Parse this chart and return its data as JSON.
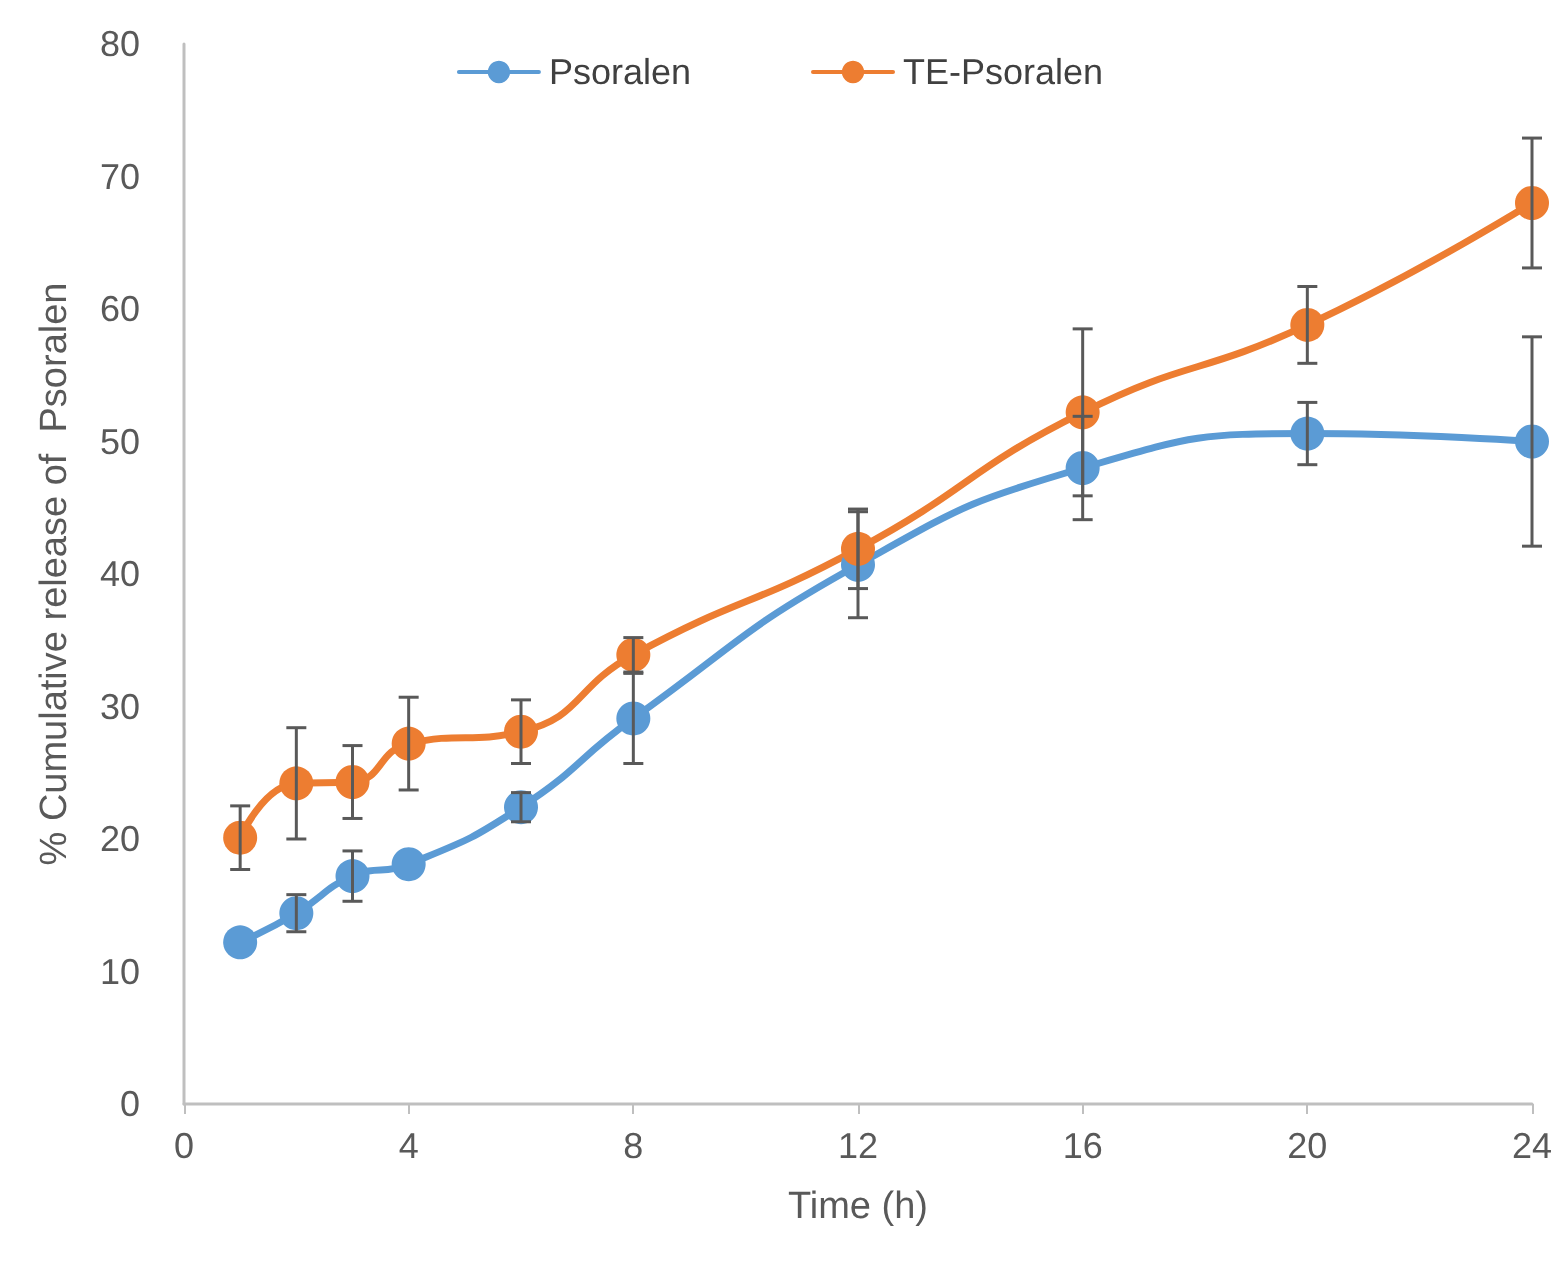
{
  "chart_data": {
    "type": "line",
    "xlabel": "Time (h)",
    "ylabel": "% Cumulative release of  Psoralen",
    "x": [
      1,
      2,
      3,
      4,
      6,
      8,
      12,
      16,
      20,
      24
    ],
    "series": [
      {
        "name": "Psoralen",
        "color": "#5b9bd5",
        "values": [
          12.2,
          14.4,
          17.2,
          18.1,
          22.4,
          29.1,
          40.7,
          48.0,
          50.6,
          50.0
        ],
        "errors": [
          null,
          1.4,
          1.9,
          null,
          1.1,
          3.4,
          4.0,
          3.9,
          2.35,
          7.9
        ]
      },
      {
        "name": "TE-Psoralen",
        "color": "#ed7d31",
        "values": [
          20.1,
          24.2,
          24.3,
          27.2,
          28.1,
          33.9,
          41.9,
          52.2,
          58.8,
          68.0
        ],
        "errors": [
          2.4,
          4.2,
          2.75,
          3.5,
          2.4,
          1.3,
          3.0,
          6.3,
          2.9,
          4.9
        ]
      }
    ],
    "xlim": [
      0,
      24
    ],
    "xticks": [
      0,
      4,
      8,
      12,
      16,
      20,
      24
    ],
    "ylim": [
      0,
      80
    ],
    "yticks": [
      0,
      10,
      20,
      30,
      40,
      50,
      60,
      70,
      80
    ],
    "grid": false,
    "legend": "top",
    "marker": "circle",
    "line_style": "solid"
  }
}
